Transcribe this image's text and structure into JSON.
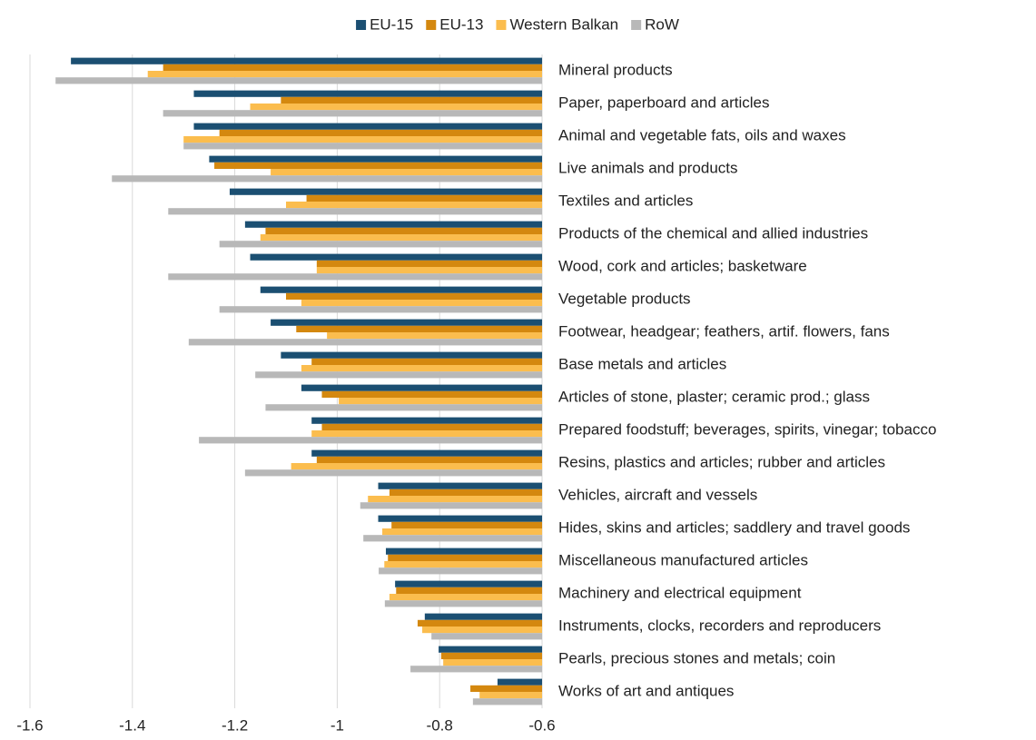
{
  "chart_data": {
    "type": "hbar",
    "categories": [
      "Mineral products",
      "Paper, paperboard and articles",
      "Animal and vegetable fats, oils and waxes",
      "Live animals and products",
      "Textiles and articles",
      "Products of the chemical and allied industries",
      "Wood, cork and articles; basketware",
      "Vegetable products",
      "Footwear, headgear; feathers, artif. flowers, fans",
      "Base metals and articles",
      "Articles of stone, plaster; ceramic prod.; glass",
      "Prepared foodstuff; beverages, spirits, vinegar; tobacco",
      "Resins, plastics and articles; rubber and articles",
      "Vehicles, aircraft and vessels",
      "Hides, skins and articles; saddlery and travel goods",
      "Miscellaneous manufactured articles",
      "Machinery and electrical equipment",
      "Instruments, clocks, recorders and reproducers",
      "Pearls, precious stones and metals; coin",
      "Works of art and antiques"
    ],
    "series": [
      {
        "name": "EU-15",
        "color": "#1b4f72",
        "values": [
          -1.52,
          -1.28,
          -1.28,
          -1.25,
          -1.21,
          -1.18,
          -1.17,
          -1.15,
          -1.13,
          -1.11,
          -1.07,
          -1.05,
          -1.05,
          -0.92,
          -0.92,
          -0.905,
          -0.887,
          -0.829,
          -0.802,
          -0.687
        ]
      },
      {
        "name": "EU-13",
        "color": "#d4880f",
        "values": [
          -1.34,
          -1.11,
          -1.23,
          -1.24,
          -1.06,
          -1.14,
          -1.04,
          -1.1,
          -1.08,
          -1.05,
          -1.03,
          -1.03,
          -1.04,
          -0.898,
          -0.894,
          -0.901,
          -0.885,
          -0.843,
          -0.797,
          -0.74
        ]
      },
      {
        "name": "Western Balkan",
        "color": "#fbbd4e",
        "values": [
          -1.37,
          -1.17,
          -1.3,
          -1.13,
          -1.1,
          -1.15,
          -1.04,
          -1.07,
          -1.02,
          -1.07,
          -0.997,
          -1.05,
          -1.09,
          -0.94,
          -0.912,
          -0.908,
          -0.898,
          -0.834,
          -0.793,
          -0.722
        ]
      },
      {
        "name": "RoW",
        "color": "#b8b8b8",
        "values": [
          -1.55,
          -1.34,
          -1.3,
          -1.44,
          -1.33,
          -1.23,
          -1.33,
          -1.23,
          -1.29,
          -1.16,
          -1.14,
          -1.27,
          -1.18,
          -0.955,
          -0.949,
          -0.919,
          -0.907,
          -0.816,
          -0.857,
          -0.735
        ]
      }
    ],
    "xlim": [
      -1.6,
      -0.6
    ],
    "xticks": [
      -1.6,
      -1.4,
      -1.2,
      -1,
      -0.8,
      -0.6
    ],
    "grid": true,
    "legend": "top"
  }
}
